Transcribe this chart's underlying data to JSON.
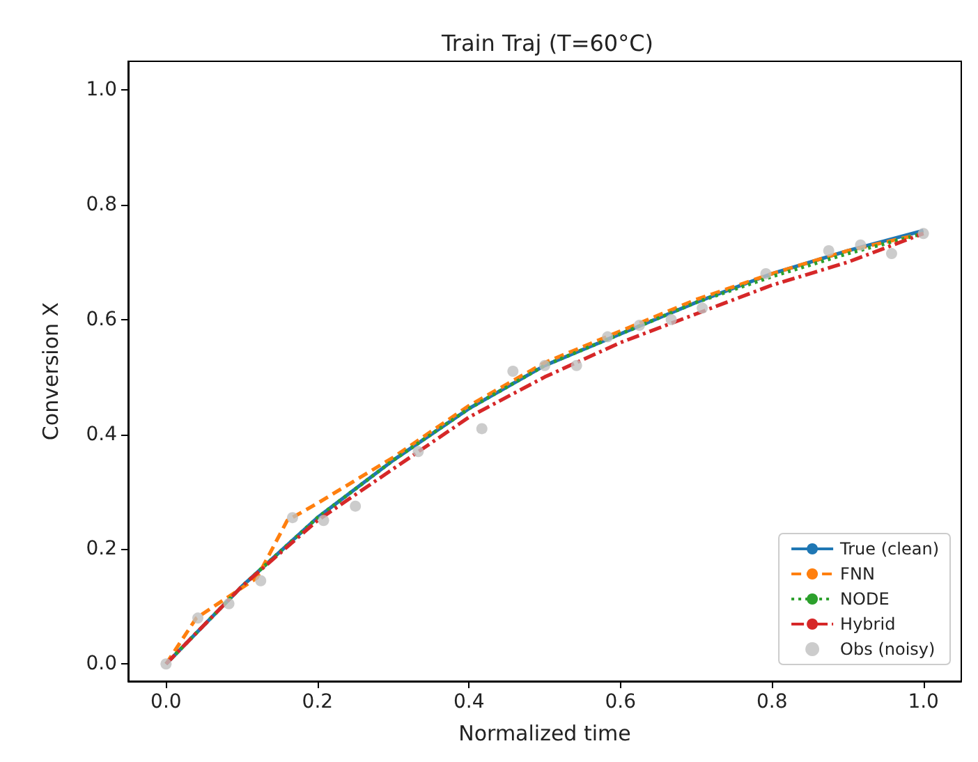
{
  "chart_data": {
    "type": "line",
    "title": "Train Traj (T=60°C)",
    "xlabel": "Normalized time",
    "ylabel": "Conversion X",
    "xlim": [
      -0.05,
      1.05
    ],
    "xticks": [
      {
        "value": 0,
        "label": "0.0"
      },
      0.2,
      0.4,
      0.6,
      0.8,
      {
        "value": 1,
        "label": "1.0"
      }
    ],
    "ylim": [
      -0.03,
      1.05
    ],
    "yticks": [
      {
        "value": 0,
        "label": "0.0"
      },
      0.2,
      0.4,
      0.6,
      0.8,
      {
        "value": 1,
        "label": "1.0"
      }
    ],
    "grid": false,
    "legend": "bottom right",
    "marker": "none",
    "series": [
      {
        "name": "True (clean)",
        "color": "#1f77b4",
        "line_style": "solid",
        "x": [
          0,
          0.1,
          0.2,
          0.3,
          0.4,
          0.5,
          0.6,
          0.7,
          0.8,
          0.9,
          1
        ],
        "values": [
          0,
          0.135,
          0.255,
          0.355,
          0.445,
          0.52,
          0.575,
          0.63,
          0.68,
          0.72,
          0.755
        ]
      },
      {
        "name": "FNN",
        "color": "#ff7f0e",
        "line_style": "dashed",
        "x": [
          0,
          0.04,
          0.12,
          0.16,
          0.2,
          0.3,
          0.4,
          0.5,
          0.6,
          0.7,
          0.8,
          0.9,
          1
        ],
        "values": [
          0,
          0.08,
          0.15,
          0.25,
          0.28,
          0.36,
          0.45,
          0.525,
          0.58,
          0.635,
          0.68,
          0.72,
          0.75
        ]
      },
      {
        "name": "NODE",
        "color": "#2ca02c",
        "line_style": "dotted",
        "x": [
          0,
          0.1,
          0.2,
          0.3,
          0.4,
          0.5,
          0.6,
          0.7,
          0.8,
          0.9,
          1
        ],
        "values": [
          0,
          0.135,
          0.255,
          0.355,
          0.445,
          0.52,
          0.575,
          0.63,
          0.675,
          0.715,
          0.75
        ]
      },
      {
        "name": "Hybrid",
        "color": "#d62728",
        "line_style": "dashdot",
        "x": [
          0,
          0.1,
          0.2,
          0.3,
          0.4,
          0.5,
          0.6,
          0.7,
          0.8,
          0.9,
          1
        ],
        "values": [
          0,
          0.135,
          0.25,
          0.34,
          0.43,
          0.5,
          0.56,
          0.61,
          0.66,
          0.7,
          0.75
        ]
      },
      {
        "name": "Obs (noisy)",
        "type": "scatter",
        "marker": "circle",
        "color": "#bfbfbf",
        "x": [
          0,
          0.042,
          0.083,
          0.125,
          0.167,
          0.208,
          0.25,
          0.333,
          0.417,
          0.458,
          0.5,
          0.542,
          0.583,
          0.625,
          0.667,
          0.708,
          0.792,
          0.875,
          0.917,
          0.958,
          1
        ],
        "values": [
          0,
          0.08,
          0.105,
          0.145,
          0.255,
          0.25,
          0.275,
          0.37,
          0.41,
          0.51,
          0.52,
          0.52,
          0.57,
          0.59,
          0.6,
          0.62,
          0.68,
          0.72,
          0.73,
          0.715,
          0.75
        ]
      }
    ]
  }
}
